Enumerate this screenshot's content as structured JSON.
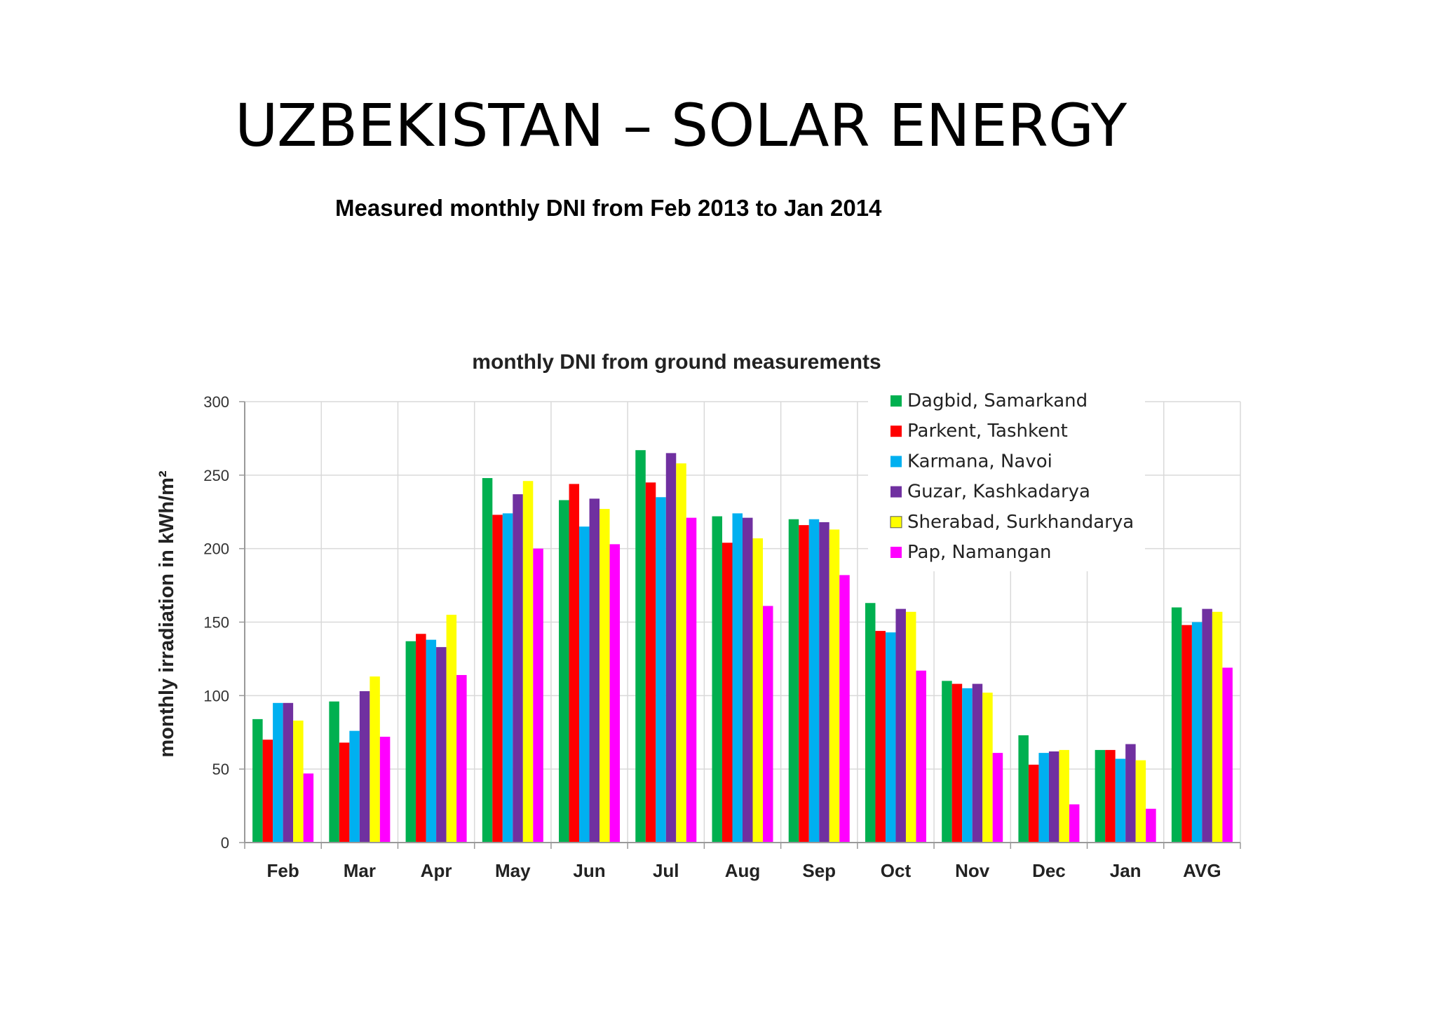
{
  "slide": {
    "title": "UZBEKISTAN – SOLAR ENERGY",
    "subtitle": "Measured monthly DNI from Feb 2013 to Jan 2014"
  },
  "chart_data": {
    "type": "bar",
    "title": "monthly DNI from ground measurements",
    "xlabel": "",
    "ylabel": "monthly  irradiation in kWh/m²",
    "ylim": [
      0,
      300
    ],
    "yticks": [
      0,
      50,
      100,
      150,
      200,
      250,
      300
    ],
    "grid": true,
    "legend_position": "top-right",
    "categories": [
      "Feb",
      "Mar",
      "Apr",
      "May",
      "Jun",
      "Jul",
      "Aug",
      "Sep",
      "Oct",
      "Nov",
      "Dec",
      "Jan",
      "AVG"
    ],
    "series": [
      {
        "name": "Dagbid, Samarkand",
        "color": "#00b050",
        "values": [
          84,
          96,
          137,
          248,
          233,
          267,
          222,
          220,
          163,
          110,
          73,
          63,
          160
        ]
      },
      {
        "name": "Parkent, Tashkent",
        "color": "#ff0000",
        "values": [
          70,
          68,
          142,
          223,
          244,
          245,
          204,
          216,
          144,
          108,
          53,
          63,
          148
        ]
      },
      {
        "name": "Karmana, Navoi",
        "color": "#00b0f0",
        "values": [
          95,
          76,
          138,
          224,
          215,
          235,
          224,
          220,
          143,
          105,
          61,
          57,
          150
        ]
      },
      {
        "name": "Guzar, Kashkadarya",
        "color": "#7030a0",
        "values": [
          95,
          103,
          133,
          237,
          234,
          265,
          221,
          218,
          159,
          108,
          62,
          67,
          159
        ]
      },
      {
        "name": "Sherabad, Surkhandarya",
        "color": "#ffff00",
        "values": [
          83,
          113,
          155,
          246,
          227,
          258,
          207,
          213,
          157,
          102,
          63,
          56,
          157
        ]
      },
      {
        "name": "Pap, Namangan",
        "color": "#ff00ff",
        "values": [
          47,
          72,
          114,
          200,
          203,
          221,
          161,
          182,
          117,
          61,
          26,
          23,
          119
        ]
      }
    ]
  }
}
